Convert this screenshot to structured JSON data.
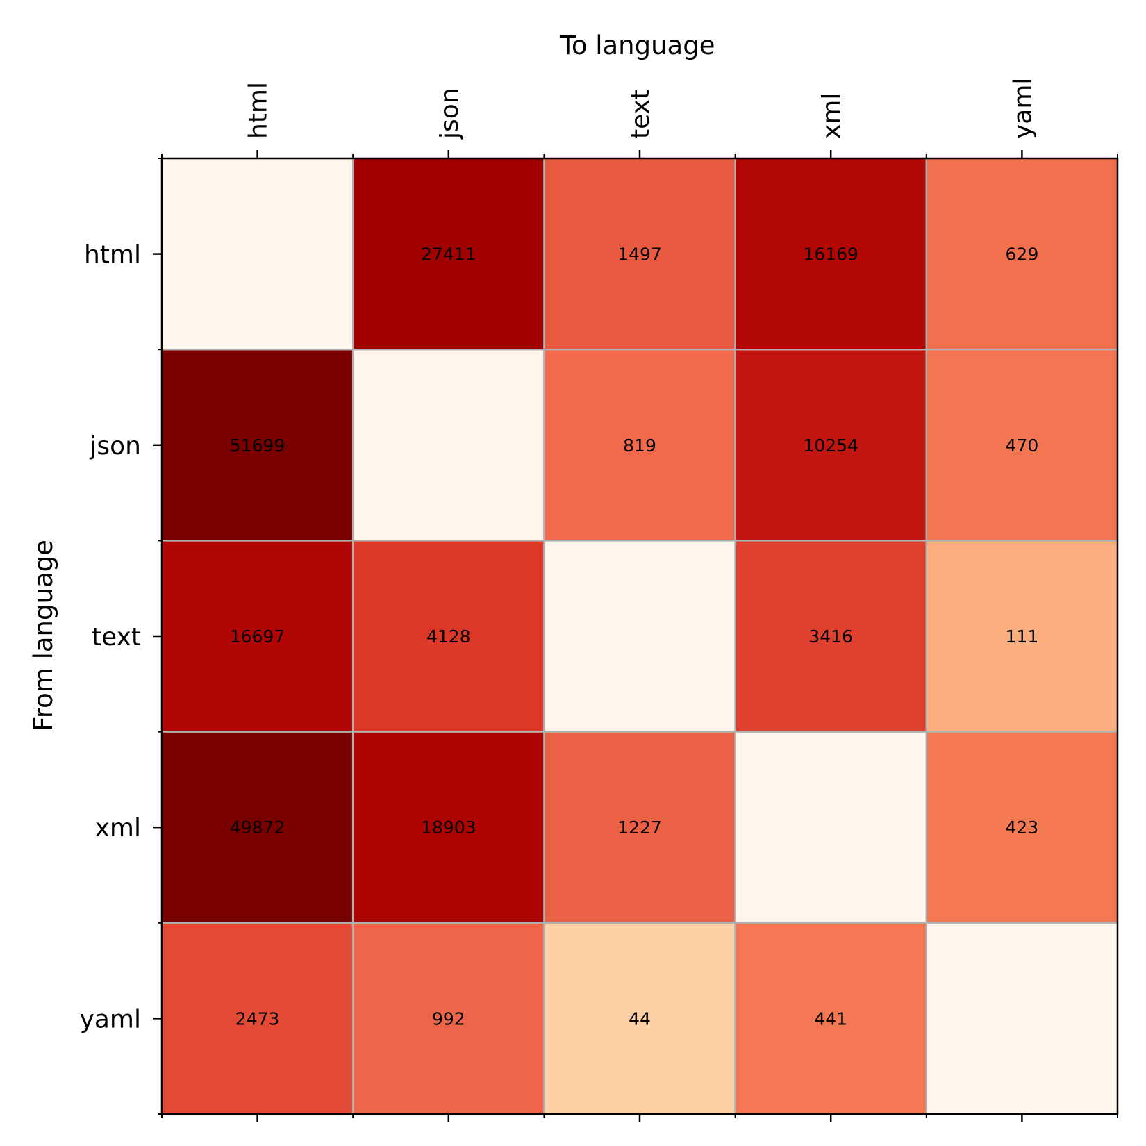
{
  "chart_data": {
    "type": "heatmap",
    "xlabel": "To language",
    "ylabel": "From language",
    "x": [
      "html",
      "json",
      "text",
      "xml",
      "yaml"
    ],
    "y": [
      "html",
      "json",
      "text",
      "xml",
      "yaml"
    ],
    "values": [
      [
        null,
        27411,
        1497,
        16169,
        629
      ],
      [
        51699,
        null,
        819,
        10254,
        470
      ],
      [
        16697,
        4128,
        null,
        3416,
        111
      ],
      [
        49872,
        18903,
        1227,
        null,
        423
      ],
      [
        2473,
        992,
        44,
        441,
        null
      ]
    ],
    "colorscale": "log, light-cream to dark-red",
    "grid": true,
    "empty_cell_color": "#fff5eb"
  }
}
